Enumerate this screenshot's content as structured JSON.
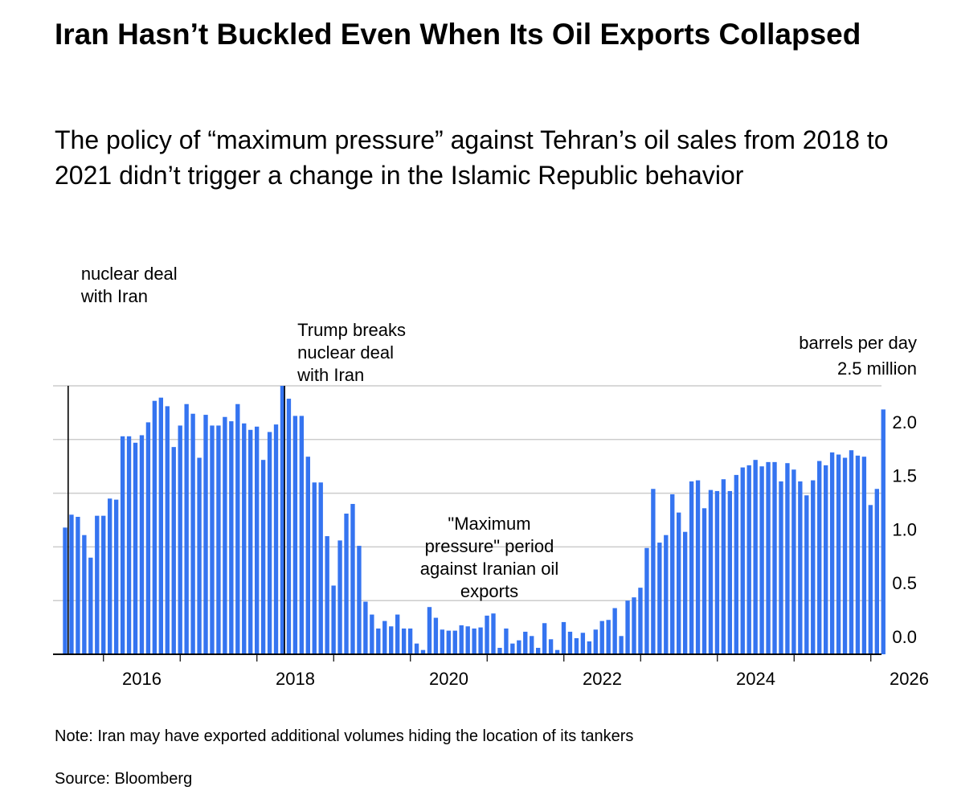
{
  "header": {
    "title": "Iran Hasn’t Buckled Even When Its Oil Exports Collapsed",
    "subtitle": "The policy of “maximum pressure” against Tehran’s oil sales from 2018 to 2021 didn’t trigger a change in the Islamic Republic behavior"
  },
  "footer": {
    "note": "Note: Iran may have exported additional volumes hiding the location of its tankers",
    "source": "Source: Bloomberg"
  },
  "colors": {
    "bar": "#3574f0",
    "grid": "#cccccc",
    "axis": "#000000"
  },
  "chart_data": {
    "type": "bar",
    "unit_label": "barrels per day",
    "y_top_label": "2.5 million",
    "ylim": [
      0,
      2.5
    ],
    "y_ticks": [
      0.0,
      0.5,
      1.0,
      1.5,
      2.0
    ],
    "y_tick_labels": [
      "0.0",
      "0.5",
      "1.0",
      "1.5",
      "2.0"
    ],
    "x_range": [
      2015.5,
      2026.17
    ],
    "x_ticks": [
      2016,
      2018,
      2020,
      2022,
      2024,
      2026
    ],
    "x_tick_labels": [
      "2016",
      "2018",
      "2020",
      "2022",
      "2024",
      "2026"
    ],
    "first_bar_date": 2015.5,
    "bar_interval_years": 0.0833,
    "values": [
      1.18,
      1.3,
      1.28,
      1.11,
      0.9,
      1.29,
      1.29,
      1.45,
      1.44,
      2.03,
      2.03,
      1.97,
      2.04,
      2.16,
      2.36,
      2.39,
      2.31,
      1.93,
      2.13,
      2.33,
      2.24,
      1.83,
      2.23,
      2.13,
      2.13,
      2.21,
      2.17,
      2.33,
      2.15,
      2.09,
      2.12,
      1.81,
      2.07,
      2.14,
      2.5,
      2.38,
      2.22,
      2.22,
      1.84,
      1.6,
      1.6,
      1.1,
      0.64,
      1.06,
      1.31,
      1.4,
      1.01,
      0.49,
      0.37,
      0.24,
      0.31,
      0.26,
      0.37,
      0.24,
      0.24,
      0.1,
      0.04,
      0.44,
      0.34,
      0.23,
      0.22,
      0.22,
      0.27,
      0.26,
      0.24,
      0.25,
      0.36,
      0.38,
      0.06,
      0.24,
      0.1,
      0.13,
      0.21,
      0.17,
      0.06,
      0.29,
      0.14,
      0.04,
      0.3,
      0.21,
      0.15,
      0.2,
      0.12,
      0.23,
      0.31,
      0.32,
      0.43,
      0.17,
      0.5,
      0.53,
      0.62,
      0.99,
      1.54,
      1.04,
      1.11,
      1.49,
      1.32,
      1.14,
      1.61,
      1.62,
      1.36,
      1.53,
      1.52,
      1.63,
      1.52,
      1.67,
      1.74,
      1.76,
      1.81,
      1.75,
      1.79,
      1.79,
      1.61,
      1.78,
      1.72,
      1.61,
      1.48,
      1.62,
      1.8,
      1.76,
      1.88,
      1.86,
      1.83,
      1.9,
      1.85,
      1.84,
      1.39,
      1.54,
      2.28
    ],
    "markers": [
      {
        "date": 2015.54,
        "label_lines": [
          "nuclear deal",
          "with Iran"
        ]
      },
      {
        "date": 2018.36,
        "label_lines": [
          "Trump breaks",
          "nuclear deal",
          "with Iran"
        ]
      }
    ],
    "annotation": {
      "label_lines": [
        "\"Maximum",
        "pressure\" period",
        "against Iranian oil",
        "exports"
      ]
    }
  }
}
